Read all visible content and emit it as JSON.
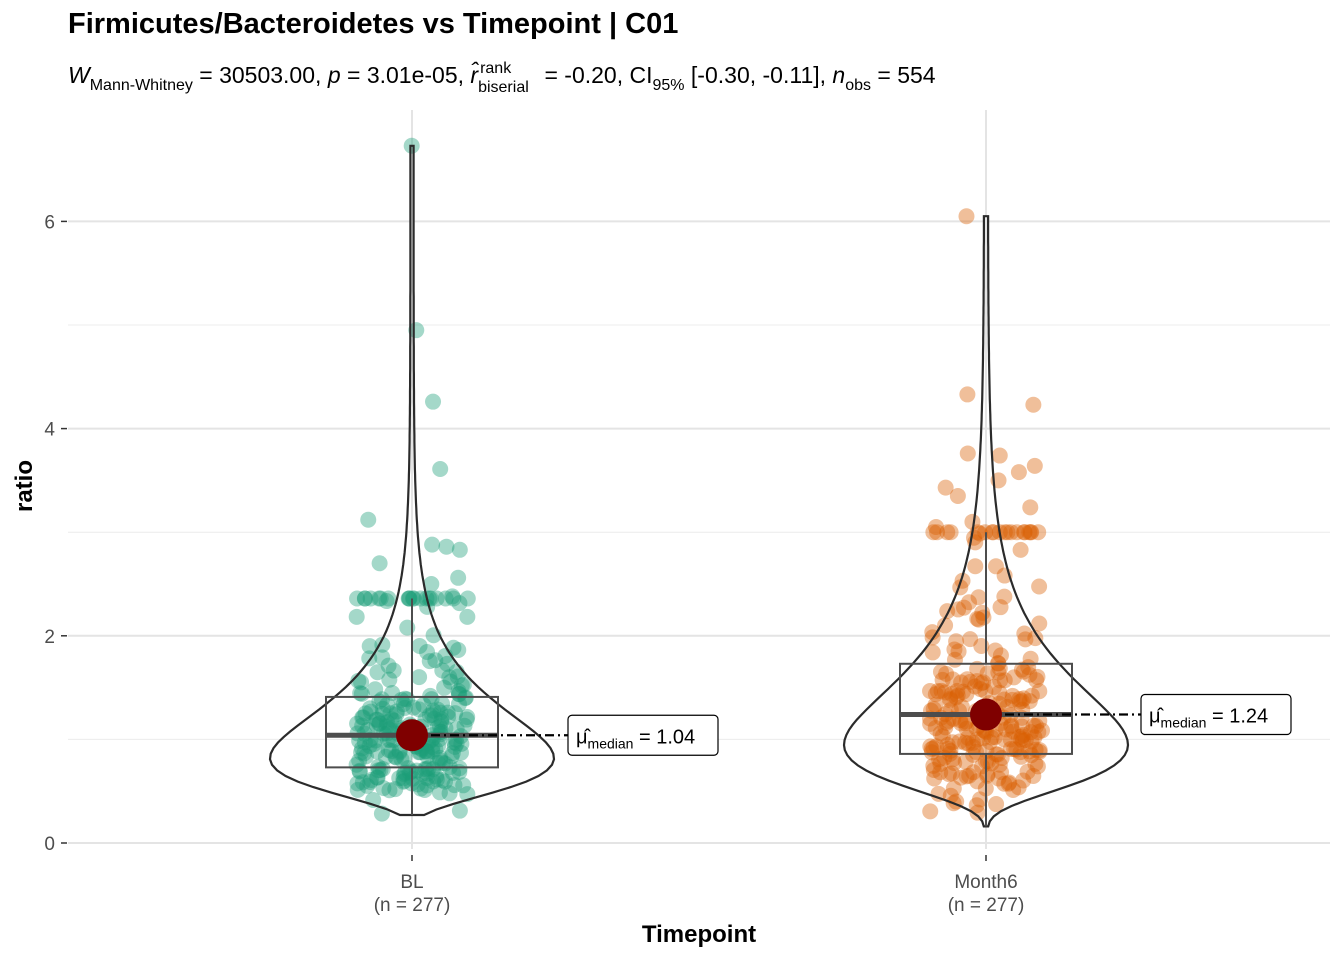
{
  "chart_data": {
    "type": "violin-box-scatter",
    "title": "Firmicutes/Bacteroidetes vs Timepoint | C01",
    "subtitle": {
      "stat_symbol": "W",
      "stat_sub": "Mann-Whitney",
      "stat_value": "= 30503.00,",
      "p_symbol": "p",
      "p_value": "= 3.01e-05,",
      "r_symbol": "r̂",
      "r_sup": "rank",
      "r_sub": "biserial",
      "r_value": "= -0.20,",
      "ci_label": "CI",
      "ci_sub": "95%",
      "ci_value": "[-0.30, -0.11],",
      "n_symbol": "n",
      "n_sub": "obs",
      "n_value": "= 554"
    },
    "xlabel": "Timepoint",
    "ylabel": "ratio",
    "ylim": [
      0,
      7
    ],
    "yticks": [
      0,
      2,
      4,
      6
    ],
    "grid": true,
    "groups": [
      {
        "name": "BL",
        "n_label": "(n = 277)",
        "color": "#1b9e77",
        "median": 1.04,
        "q1": 0.73,
        "q3": 1.41,
        "whisker_low": 0.27,
        "whisker_high": 2.36,
        "min": 0.27,
        "max": 6.73,
        "median_label_prefix": "μ̂",
        "median_label_sub": "median",
        "median_label_value": "= 1.04"
      },
      {
        "name": "Month6",
        "n_label": "(n = 277)",
        "color": "#d95f02",
        "median": 1.24,
        "q1": 0.86,
        "q3": 1.73,
        "whisker_low": 0.16,
        "whisker_high": 3.0,
        "min": 0.16,
        "max": 6.05,
        "median_label_prefix": "μ̂",
        "median_label_sub": "median",
        "median_label_value": "= 1.24"
      }
    ],
    "outlier_points": [
      {
        "group": "BL",
        "y": 6.73
      },
      {
        "group": "BL",
        "y": 4.95
      },
      {
        "group": "BL",
        "y": 4.26
      },
      {
        "group": "BL",
        "y": 3.61
      },
      {
        "group": "BL",
        "y": 3.12
      },
      {
        "group": "BL",
        "y": 2.88
      },
      {
        "group": "BL",
        "y": 2.83
      },
      {
        "group": "BL",
        "y": 2.86
      },
      {
        "group": "BL",
        "y": 2.7
      },
      {
        "group": "BL",
        "y": 2.56
      },
      {
        "group": "BL",
        "y": 2.5
      },
      {
        "group": "BL",
        "y": 2.38
      },
      {
        "group": "Month6",
        "y": 6.05
      },
      {
        "group": "Month6",
        "y": 4.33
      },
      {
        "group": "Month6",
        "y": 4.23
      },
      {
        "group": "Month6",
        "y": 3.76
      },
      {
        "group": "Month6",
        "y": 3.74
      },
      {
        "group": "Month6",
        "y": 3.64
      },
      {
        "group": "Month6",
        "y": 3.58
      },
      {
        "group": "Month6",
        "y": 3.5
      },
      {
        "group": "Month6",
        "y": 3.43
      },
      {
        "group": "Month6",
        "y": 3.35
      },
      {
        "group": "Month6",
        "y": 3.24
      },
      {
        "group": "Month6",
        "y": 3.1
      },
      {
        "group": "Month6",
        "y": 3.05
      },
      {
        "group": "Month6",
        "y": 3.0
      }
    ],
    "mean_point_color": "#7f0000"
  }
}
